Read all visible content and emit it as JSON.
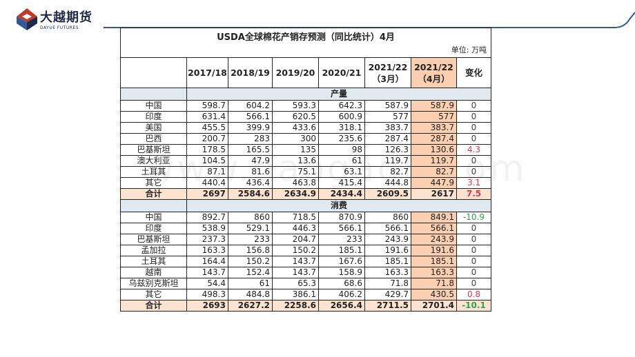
{
  "brand": {
    "name_cn": "大越期货",
    "name_en": "DAYUE FUTURES",
    "color": "#1f2a48",
    "accent": "#c0392b",
    "line_color": "#2e5a9a"
  },
  "table": {
    "title": "USDA全球棉花产销存预测（同比统计）4月",
    "unit": "单位: 万吨",
    "headers": [
      "",
      "2017/18",
      "2018/19",
      "2019/20",
      "2020/21",
      "2021/22\n（3月）",
      "2021/22\n（4月）",
      "变化"
    ],
    "sections": [
      {
        "label": "产量",
        "rows": [
          {
            "name": "中国",
            "values": [
              "598.7",
              "604.2",
              "593.3",
              "642.3",
              "587.9",
              "587.9"
            ],
            "change": "0",
            "sign": "zero"
          },
          {
            "name": "印度",
            "values": [
              "631.4",
              "566.1",
              "620.5",
              "600.9",
              "577",
              "577"
            ],
            "change": "0",
            "sign": "zero"
          },
          {
            "name": "美国",
            "values": [
              "455.5",
              "399.9",
              "433.6",
              "318.1",
              "383.7",
              "383.7"
            ],
            "change": "0",
            "sign": "zero"
          },
          {
            "name": "巴西",
            "values": [
              "200.7",
              "283",
              "300",
              "235.6",
              "287.4",
              "287.4"
            ],
            "change": "0",
            "sign": "zero"
          },
          {
            "name": "巴基斯坦",
            "values": [
              "178.5",
              "165.5",
              "135",
              "98",
              "126.3",
              "130.6"
            ],
            "change": "4.3",
            "sign": "pos"
          },
          {
            "name": "澳大利亚",
            "values": [
              "104.5",
              "47.9",
              "13.6",
              "61",
              "119.7",
              "119.7"
            ],
            "change": "0",
            "sign": "zero"
          },
          {
            "name": "土耳其",
            "values": [
              "87.1",
              "81.6",
              "75.1",
              "63.1",
              "82.7",
              "82.7"
            ],
            "change": "0",
            "sign": "zero"
          },
          {
            "name": "其它",
            "values": [
              "440.4",
              "436.4",
              "463.8",
              "415.4",
              "444.8",
              "447.9"
            ],
            "change": "3.1",
            "sign": "pos"
          }
        ],
        "total": {
          "name": "合计",
          "values": [
            "2697",
            "2584.6",
            "2634.9",
            "2434.4",
            "2609.5",
            "2617"
          ],
          "change": "7.5",
          "sign": "pos"
        }
      },
      {
        "label": "消费",
        "rows": [
          {
            "name": "中国",
            "values": [
              "892.7",
              "860",
              "718.5",
              "870.9",
              "860",
              "849.1"
            ],
            "change": "-10.9",
            "sign": "neg"
          },
          {
            "name": "印度",
            "values": [
              "538.9",
              "529.1",
              "446.3",
              "566.1",
              "566.1",
              "566.1"
            ],
            "change": "0",
            "sign": "zero"
          },
          {
            "name": "巴基斯坦",
            "values": [
              "237.3",
              "233",
              "204.7",
              "233",
              "243.9",
              "243.9"
            ],
            "change": "0",
            "sign": "zero"
          },
          {
            "name": "孟加拉",
            "values": [
              "163.3",
              "156.8",
              "150.2",
              "185.1",
              "191.6",
              "191.6"
            ],
            "change": "0",
            "sign": "zero"
          },
          {
            "name": "土耳其",
            "values": [
              "164.4",
              "150.2",
              "143.7",
              "167.6",
              "185.1",
              "185.1"
            ],
            "change": "0",
            "sign": "zero"
          },
          {
            "name": "越南",
            "values": [
              "143.7",
              "152.4",
              "143.7",
              "158.9",
              "163.3",
              "163.3"
            ],
            "change": "0",
            "sign": "zero"
          },
          {
            "name": "乌兹别克斯坦",
            "values": [
              "54.4",
              "61",
              "65.3",
              "68.6",
              "71.8",
              "71.8"
            ],
            "change": "0",
            "sign": "zero"
          },
          {
            "name": "其它",
            "values": [
              "498.3",
              "484.8",
              "386.1",
              "406.2",
              "429.7",
              "430.5"
            ],
            "change": "0.8",
            "sign": "pos"
          }
        ],
        "total": {
          "name": "合计",
          "values": [
            "2693",
            "2627.2",
            "2258.6",
            "2656.4",
            "2711.5",
            "2701.4"
          ],
          "change": "-10.1",
          "sign": "neg"
        }
      }
    ]
  },
  "watermark": "www.baogao8.com"
}
